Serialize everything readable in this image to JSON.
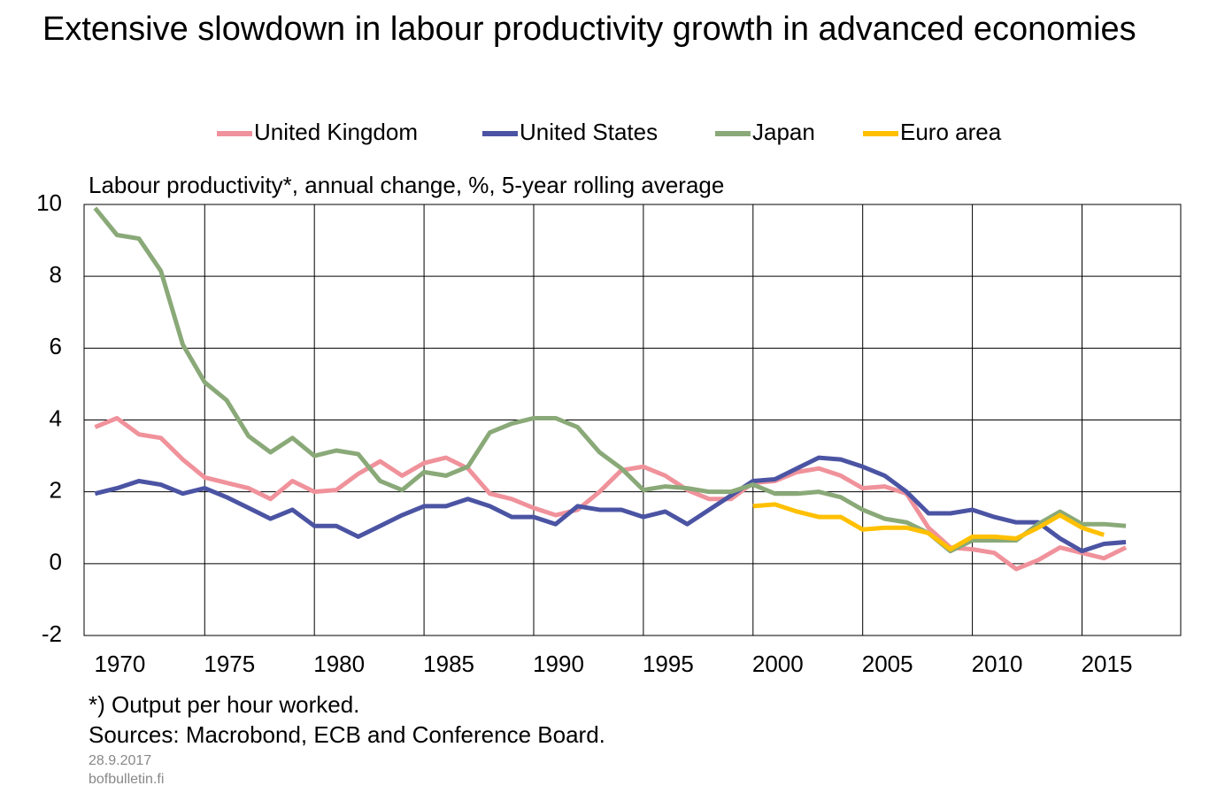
{
  "chart_data": {
    "type": "line",
    "title": "Extensive slowdown in labour productivity growth in advanced economies",
    "y_label": "Labour productivity*, annual change, %, 5-year rolling average",
    "footnote": "*) Output per hour worked.",
    "sources": "Sources: Macrobond, ECB and Conference Board.",
    "date": "28.9.2017",
    "site": "bofbulletin.fi",
    "x": [
      1970,
      1971,
      1972,
      1973,
      1974,
      1975,
      1976,
      1977,
      1978,
      1979,
      1980,
      1981,
      1982,
      1983,
      1984,
      1985,
      1986,
      1987,
      1988,
      1989,
      1990,
      1991,
      1992,
      1993,
      1994,
      1995,
      1996,
      1997,
      1998,
      1999,
      2000,
      2001,
      2002,
      2003,
      2004,
      2005,
      2006,
      2007,
      2008,
      2009,
      2010,
      2011,
      2012,
      2013,
      2014,
      2015,
      2016,
      2017
    ],
    "series": [
      {
        "name": "United Kingdom",
        "color": "#f0929b",
        "values": [
          3.8,
          4.05,
          3.6,
          3.5,
          2.9,
          2.4,
          2.25,
          2.1,
          1.8,
          2.3,
          2.0,
          2.05,
          2.5,
          2.85,
          2.45,
          2.8,
          2.95,
          2.65,
          1.95,
          1.8,
          1.55,
          1.35,
          1.5,
          2.0,
          2.6,
          2.7,
          2.45,
          2.05,
          1.8,
          1.8,
          2.25,
          2.3,
          2.55,
          2.65,
          2.45,
          2.1,
          2.15,
          1.95,
          1.0,
          0.45,
          0.4,
          0.3,
          -0.15,
          0.1,
          0.45,
          0.3,
          0.15,
          0.45
        ]
      },
      {
        "name": "United States",
        "color": "#4b54a3",
        "values": [
          1.95,
          2.1,
          2.3,
          2.2,
          1.95,
          2.1,
          1.85,
          1.55,
          1.25,
          1.5,
          1.05,
          1.05,
          0.75,
          1.05,
          1.35,
          1.6,
          1.6,
          1.8,
          1.6,
          1.3,
          1.3,
          1.1,
          1.6,
          1.5,
          1.5,
          1.3,
          1.45,
          1.1,
          1.5,
          1.9,
          2.3,
          2.35,
          2.65,
          2.95,
          2.9,
          2.7,
          2.45,
          2.0,
          1.4,
          1.4,
          1.5,
          1.3,
          1.15,
          1.15,
          0.7,
          0.35,
          0.55,
          0.6
        ]
      },
      {
        "name": "Japan",
        "color": "#8aa978",
        "values": [
          9.9,
          9.15,
          9.05,
          8.15,
          6.1,
          5.05,
          4.55,
          3.55,
          3.1,
          3.5,
          3.0,
          3.15,
          3.05,
          2.3,
          2.05,
          2.55,
          2.45,
          2.7,
          3.65,
          3.9,
          4.05,
          4.05,
          3.8,
          3.1,
          2.65,
          2.05,
          2.15,
          2.1,
          2.0,
          2.0,
          2.2,
          1.95,
          1.95,
          2.0,
          1.85,
          1.5,
          1.25,
          1.15,
          0.85,
          0.35,
          0.65,
          0.65,
          0.65,
          1.1,
          1.45,
          1.1,
          1.1,
          1.05
        ]
      },
      {
        "name": "Euro area",
        "color": "#ffc000",
        "values": [
          null,
          null,
          null,
          null,
          null,
          null,
          null,
          null,
          null,
          null,
          null,
          null,
          null,
          null,
          null,
          null,
          null,
          null,
          null,
          null,
          null,
          null,
          null,
          null,
          null,
          null,
          null,
          null,
          null,
          null,
          1.6,
          1.65,
          1.45,
          1.3,
          1.3,
          0.95,
          1.0,
          1.0,
          0.85,
          0.4,
          0.75,
          0.75,
          0.7,
          1.0,
          1.35,
          1.0,
          0.8,
          null
        ]
      }
    ],
    "xlim": [
      1969.5,
      2019.5
    ],
    "xticks": [
      1970,
      1975,
      1980,
      1985,
      1990,
      1995,
      2000,
      2005,
      2010,
      2015
    ],
    "ylim": [
      -2,
      10
    ],
    "yticks": [
      -2,
      0,
      2,
      4,
      6,
      8,
      10
    ],
    "grid": true,
    "legend": "top"
  }
}
